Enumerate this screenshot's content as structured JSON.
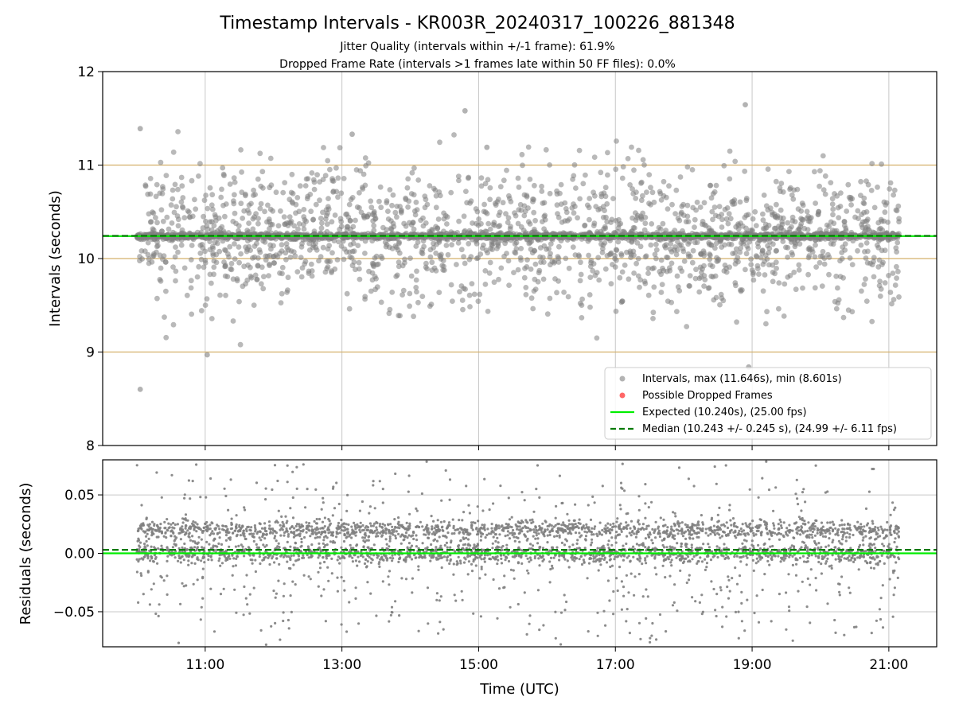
{
  "figure": {
    "title": "Timestamp Intervals - KR003R_20240317_100226_881348",
    "subtitle_1": "Jitter Quality (intervals within +/-1 frame): 61.9%",
    "subtitle_2": "Dropped Frame Rate (intervals >1 frames late within 50 FF files): 0.0%"
  },
  "colors": {
    "interval_points": "#808080",
    "dropped_points": "#ff0000",
    "expected_line": "#00ee00",
    "median_line": "#007a00",
    "threshold_lines": "#d4b06a",
    "grid": "#c8c8c8"
  },
  "chart_data": [
    {
      "type": "scatter",
      "panel": "top",
      "ylabel": "Intervals (seconds)",
      "xlabel": "",
      "x_unit": "hours UTC",
      "xlim": [
        9.5,
        21.7
      ],
      "ylim": [
        8,
        12
      ],
      "xticks": [
        11,
        13,
        15,
        17,
        19,
        21
      ],
      "xtick_labels": [
        "11:00",
        "13:00",
        "15:00",
        "17:00",
        "19:00",
        "21:00"
      ],
      "yticks": [
        8,
        9,
        10,
        11,
        12
      ],
      "ytick_labels": [
        "8",
        "9",
        "10",
        "11",
        "12"
      ],
      "grid": true,
      "legend_position": "lower-right",
      "series": [
        {
          "name": "Intervals, max (11.646s), min (8.601s)",
          "kind": "points",
          "x_range": [
            10.0,
            21.15
          ],
          "count": 3700,
          "core_value": 10.24,
          "max": 11.646,
          "min": 8.601,
          "sample_points": [
            [
              10.05,
              11.39
            ],
            [
              10.05,
              8.601
            ],
            [
              11.03,
              8.97
            ],
            [
              14.8,
              11.58
            ],
            [
              18.9,
              11.646
            ],
            [
              18.95,
              8.84
            ],
            [
              13.15,
              11.33
            ],
            [
              15.12,
              11.19
            ]
          ]
        },
        {
          "name": "Possible Dropped Frames",
          "kind": "points",
          "values": []
        },
        {
          "name": "Expected (10.240s), (25.00 fps)",
          "kind": "hline",
          "value": 10.24
        },
        {
          "name": "Median (10.243 +/- 0.245 s), (24.99 +/- 6.11 fps)",
          "kind": "hline-dashed",
          "value": 10.243
        }
      ],
      "threshold_lines": [
        9,
        10,
        11
      ]
    },
    {
      "type": "scatter",
      "panel": "bottom",
      "ylabel": "Residuals (seconds)",
      "xlabel": "Time (UTC)",
      "x_unit": "hours UTC",
      "xlim": [
        9.5,
        21.7
      ],
      "ylim": [
        -0.08,
        0.08
      ],
      "xticks": [
        11,
        13,
        15,
        17,
        19,
        21
      ],
      "xtick_labels": [
        "11:00",
        "13:00",
        "15:00",
        "17:00",
        "19:00",
        "21:00"
      ],
      "yticks": [
        0.05,
        0.0,
        -0.05
      ],
      "ytick_labels": [
        "0.05",
        "0.00",
        "−0.05"
      ],
      "grid": true,
      "series": [
        {
          "kind": "points",
          "x_range": [
            10.0,
            21.15
          ],
          "count": 3700,
          "cluster_values": [
            0.0,
            0.02
          ]
        },
        {
          "kind": "hline",
          "value": 0.0
        },
        {
          "kind": "hline-dashed",
          "value": 0.003
        }
      ]
    }
  ]
}
